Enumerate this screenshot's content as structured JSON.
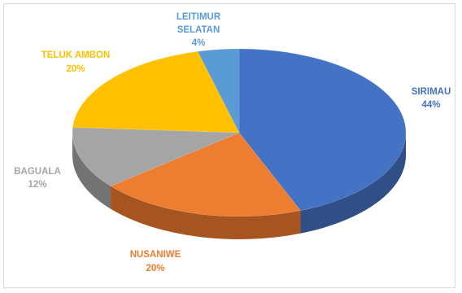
{
  "chart_data": {
    "type": "pie",
    "style": "3d",
    "title": "",
    "slices": [
      {
        "name": "SIRIMAU",
        "value": 44,
        "label": "44%",
        "color": "#4472C4",
        "side": "#2F4F86"
      },
      {
        "name": "NUSANIWE",
        "value": 20,
        "label": "20%",
        "color": "#ED7D31",
        "side": "#A65420"
      },
      {
        "name": "BAGUALA",
        "value": 12,
        "label": "12%",
        "color": "#A5A5A5",
        "side": "#737373"
      },
      {
        "name": "TELUK AMBON",
        "value": 20,
        "label": "20%",
        "color": "#FFC000",
        "side": "#B38600"
      },
      {
        "name": "LEITIMUR SELATAN",
        "value": 4,
        "label": "4%",
        "color": "#5B9BD5",
        "side": "#3F6E99"
      }
    ],
    "labels": {
      "SIRIMAU": [
        "SIRIMAU",
        "44%"
      ],
      "NUSANIWE": [
        "NUSANIWE",
        "20%"
      ],
      "BAGUALA": [
        "BAGUALA",
        "12%"
      ],
      "TELUK AMBON": [
        "TELUK AMBON",
        "20%"
      ],
      "LEITIMUR SELATAN": [
        "LEITIMUR",
        "SELATAN",
        "4%"
      ]
    },
    "legend": "none",
    "data_labels": "outside"
  }
}
